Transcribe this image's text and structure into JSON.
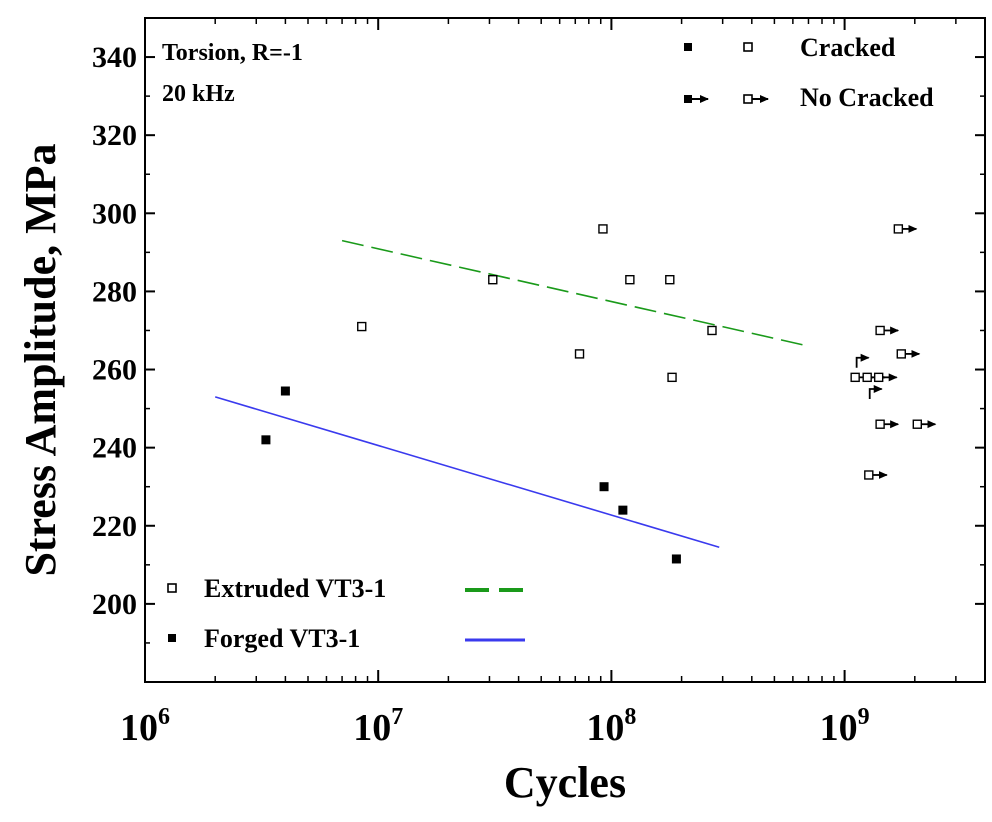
{
  "chart_data": {
    "type": "scatter",
    "xlabel": "Cycles",
    "ylabel": "Stress Amplitude, MPa",
    "x_scale": "log",
    "xlim": [
      1000000,
      4000000000
    ],
    "ylim": [
      180,
      350
    ],
    "x_ticks": [
      {
        "value": 1000000,
        "base": "10",
        "exp": "6"
      },
      {
        "value": 10000000,
        "base": "10",
        "exp": "7"
      },
      {
        "value": 100000000,
        "base": "10",
        "exp": "8"
      },
      {
        "value": 1000000000,
        "base": "10",
        "exp": "9"
      }
    ],
    "y_ticks": [
      200,
      220,
      240,
      260,
      280,
      300,
      320,
      340
    ],
    "annotations": [
      "Torsion, R=-1",
      "20 kHz"
    ],
    "marker_legend": {
      "cracked_label": "Cracked",
      "no_cracked_label": "No Cracked"
    },
    "series": [
      {
        "name": "Extruded VT3-1",
        "marker": "open-square",
        "fit_color": "#1a9a1a",
        "fit_style": "dashed",
        "cracked": [
          [
            8500000,
            271
          ],
          [
            31000000,
            283
          ],
          [
            73000000,
            264
          ],
          [
            92000000,
            296
          ],
          [
            120000000,
            283
          ],
          [
            178000000,
            283
          ],
          [
            182000000,
            258
          ],
          [
            270000000,
            270
          ]
        ],
        "runouts": [
          [
            1110000000,
            258
          ],
          [
            1250000000,
            258
          ],
          [
            1400000000,
            258
          ],
          [
            1700000000,
            296
          ],
          [
            1420000000,
            270
          ],
          [
            1750000000,
            264
          ],
          [
            1420000000,
            246
          ],
          [
            2050000000,
            246
          ],
          [
            1270000000,
            233
          ]
        ],
        "fit": [
          [
            7000000,
            293
          ],
          [
            700000000,
            266
          ]
        ]
      },
      {
        "name": "Forged VT3-1",
        "marker": "filled-square",
        "fit_color": "#3a3aee",
        "fit_style": "solid",
        "cracked": [
          [
            3300000,
            242
          ],
          [
            4000000,
            254.5
          ],
          [
            93000000,
            230
          ],
          [
            112000000,
            224
          ],
          [
            190000000,
            211.5
          ]
        ],
        "runouts": [
          [
            1160000000,
            262
          ],
          [
            1320000000,
            254
          ]
        ],
        "fit": [
          [
            2000000,
            253
          ],
          [
            290000000,
            214.5
          ]
        ]
      }
    ],
    "grid": false,
    "legend": {
      "position": "bottom-left"
    }
  }
}
